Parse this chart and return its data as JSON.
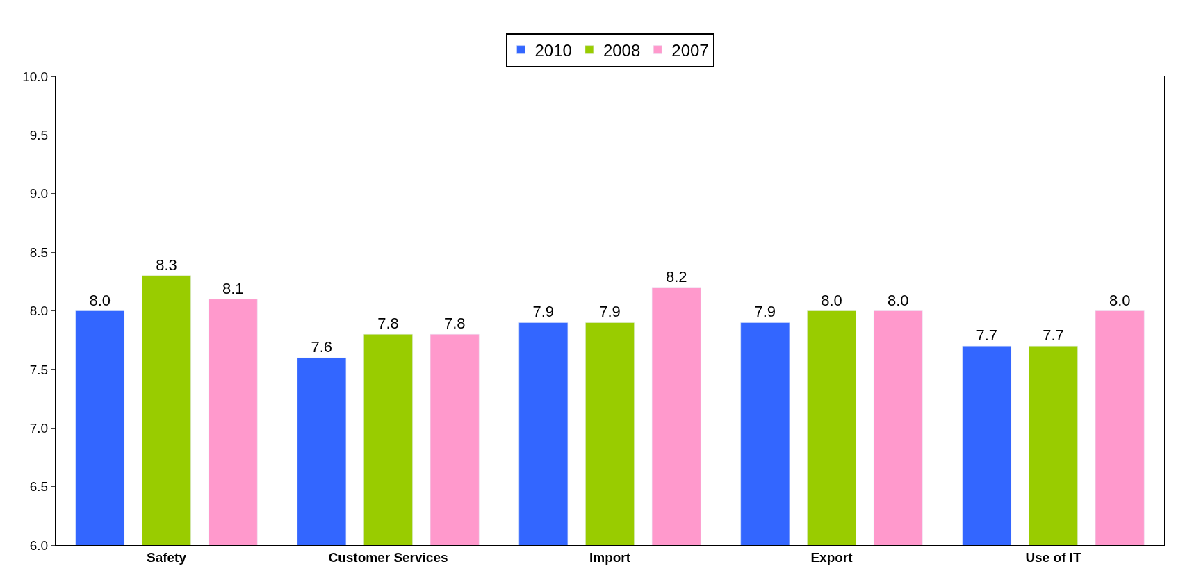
{
  "chart_data": {
    "type": "bar",
    "categories": [
      "Safety",
      "Customer Services",
      "Import",
      "Export",
      "Use of IT"
    ],
    "series": [
      {
        "name": "2010",
        "color": "#3366ff",
        "values": [
          8.0,
          7.6,
          7.9,
          7.9,
          7.7
        ],
        "value_labels": [
          "8.0",
          "7.6",
          "7.9",
          "7.9",
          "7.7"
        ]
      },
      {
        "name": "2008",
        "color": "#99cc00",
        "values": [
          8.3,
          7.8,
          7.9,
          8.0,
          7.7
        ],
        "value_labels": [
          "8.3",
          "7.8",
          "7.9",
          "8.0",
          "7.7"
        ]
      },
      {
        "name": "2007",
        "color": "#ff99cc",
        "values": [
          8.1,
          7.8,
          8.2,
          8.0,
          8.0
        ],
        "value_labels": [
          "8.1",
          "7.8",
          "8.2",
          "8.0",
          "8.0"
        ]
      }
    ],
    "ylim": [
      6,
      10
    ],
    "yticks": [
      {
        "value": 6,
        "label": "6.0"
      },
      {
        "value": 6.5,
        "label": "6.5"
      },
      {
        "value": 7,
        "label": "7.0"
      },
      {
        "value": 7.5,
        "label": "7.5"
      },
      {
        "value": 8,
        "label": "8.0"
      },
      {
        "value": 8.5,
        "label": "8.5"
      },
      {
        "value": 9,
        "label": "9.0"
      },
      {
        "value": 9.5,
        "label": "9.5"
      },
      {
        "value": 10,
        "label": "10.0"
      }
    ],
    "grid": false,
    "legend": "top"
  }
}
